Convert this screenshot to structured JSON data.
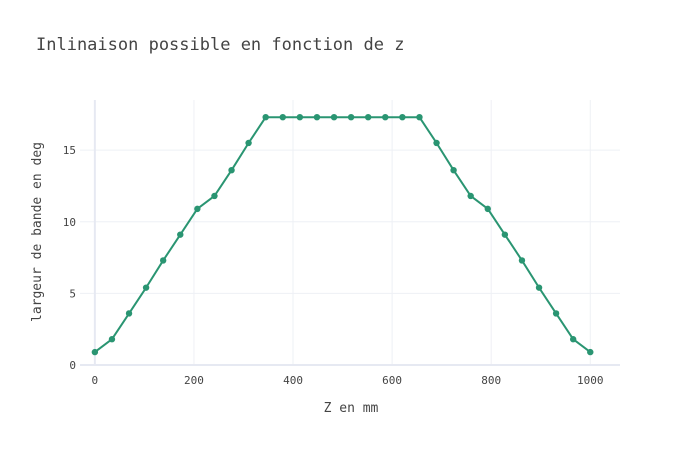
{
  "chart_data": {
    "type": "line",
    "title": "Inlinaison possible en fonction de z",
    "xlabel": "Z en mm",
    "ylabel": "largeur de bande en deg",
    "xlim": [
      -30,
      1060
    ],
    "ylim": [
      0,
      18.5
    ],
    "xticks": [
      0,
      200,
      400,
      600,
      800,
      1000
    ],
    "yticks": [
      0,
      5,
      10,
      15
    ],
    "grid": true,
    "legend": false,
    "colors": {
      "series": "#2a9572"
    },
    "series": [
      {
        "x": [
          0,
          34.5,
          69,
          103.4,
          137.9,
          172.4,
          206.9,
          241.4,
          275.9,
          310.3,
          344.8,
          379.3,
          413.8,
          448.3,
          482.8,
          517.2,
          551.7,
          586.2,
          620.7,
          655.2,
          689.7,
          724.1,
          758.6,
          793.1,
          827.6,
          862.1,
          896.6,
          931,
          965.5,
          1000
        ],
        "y": [
          0.9,
          1.8,
          3.6,
          5.4,
          7.3,
          9.1,
          10.9,
          11.8,
          13.6,
          15.5,
          17.3,
          17.3,
          17.3,
          17.3,
          17.3,
          17.3,
          17.3,
          17.3,
          17.3,
          17.3,
          15.5,
          13.6,
          11.8,
          10.9,
          9.1,
          7.3,
          5.4,
          3.6,
          1.8,
          0.9
        ]
      }
    ]
  }
}
